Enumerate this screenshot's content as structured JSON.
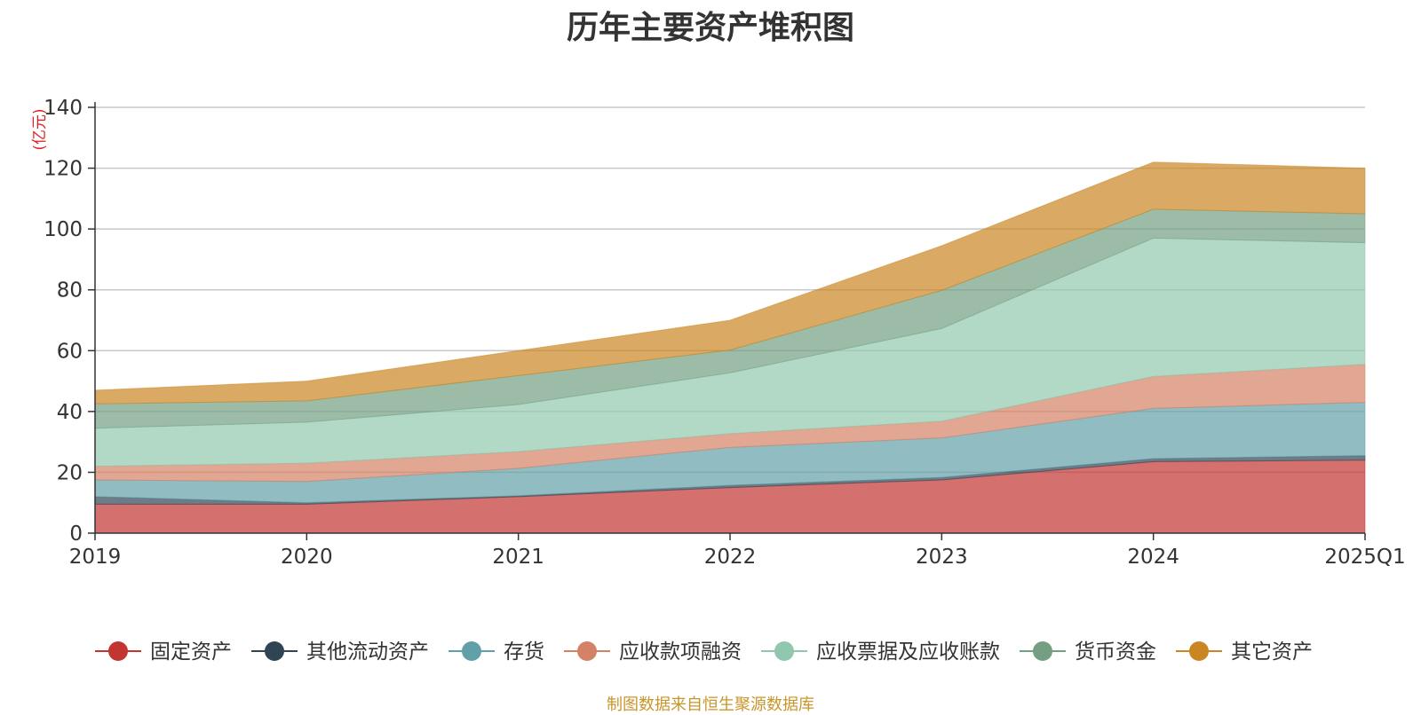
{
  "title": "历年主要资产堆积图",
  "source": "制图数据来自恒生聚源数据库",
  "chart_data": {
    "type": "area",
    "stacked": true,
    "title": "历年主要资产堆积图",
    "ylabel": "(亿元)",
    "categories": [
      "2019",
      "2020",
      "2021",
      "2022",
      "2023",
      "2024",
      "2025Q1"
    ],
    "ylim": [
      0,
      140
    ],
    "yticks": [
      0,
      20,
      40,
      60,
      80,
      100,
      120,
      140
    ],
    "grid": true,
    "legend_position": "bottom",
    "series": [
      {
        "name": "固定资产",
        "color": "#c23531",
        "values": [
          9.5,
          9.5,
          12,
          15,
          17.5,
          23.5,
          24
        ]
      },
      {
        "name": "其他流动资产",
        "color": "#2f4554",
        "values": [
          2.5,
          0.5,
          0.3,
          0.7,
          0.8,
          1.0,
          1.5
        ]
      },
      {
        "name": "存货",
        "color": "#61a0a8",
        "values": [
          5.5,
          7,
          9,
          12.5,
          13,
          16.5,
          17.5
        ]
      },
      {
        "name": "应收款项融资",
        "color": "#d48265",
        "values": [
          4.5,
          6,
          5.5,
          4.5,
          5.5,
          10.5,
          12.5
        ]
      },
      {
        "name": "应收票据及应收账款",
        "color": "#91c7ae",
        "values": [
          12.5,
          13.5,
          15.5,
          20,
          30.5,
          45.5,
          40
        ]
      },
      {
        "name": "货币资金",
        "color": "#749f83",
        "values": [
          8,
          7,
          9.5,
          7.5,
          12.5,
          9.5,
          9.5
        ]
      },
      {
        "name": "其它资产",
        "color": "#ca8622",
        "values": [
          4.5,
          6.5,
          8.2,
          9.8,
          14.7,
          15.5,
          15
        ]
      }
    ]
  }
}
